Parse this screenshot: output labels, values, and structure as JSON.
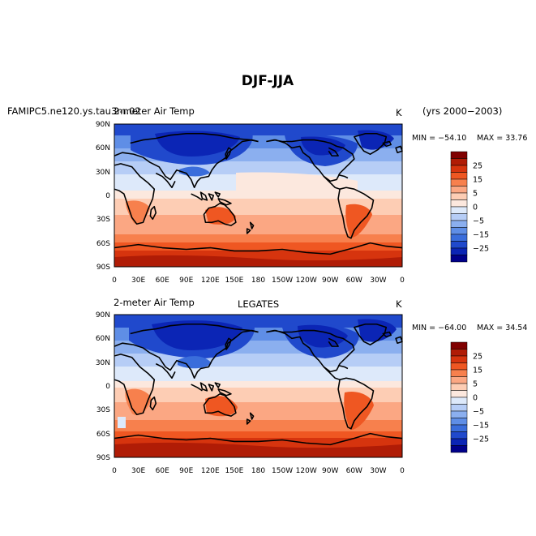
{
  "figure": {
    "title": "DJF-JJA",
    "units": "K"
  },
  "panels": [
    {
      "case_label": "FAMIPC5.ne120.ys.tau3m.02",
      "variable": "2-meter Air Temp",
      "units": "K",
      "years": "(yrs 2000−2003)",
      "min_text": "MIN = −54.10",
      "max_text": "MAX =  33.76",
      "min": -54.1,
      "max": 33.76
    },
    {
      "case_label": "LEGATES",
      "variable": "2-meter Air Temp",
      "units": "K",
      "min_text": "MIN = −64.00",
      "max_text": "MAX =  34.54",
      "min": -64.0,
      "max": 34.54
    }
  ],
  "axes": {
    "lat_ticks": [
      "90N",
      "60N",
      "30N",
      "0",
      "30S",
      "60S",
      "90S"
    ],
    "lon_ticks": [
      "0",
      "30E",
      "60E",
      "90E",
      "120E",
      "150E",
      "180",
      "150W",
      "120W",
      "90W",
      "60W",
      "30W",
      "0"
    ]
  },
  "colorbar": {
    "labels": [
      "25",
      "15",
      "5",
      "0",
      "−5",
      "−15",
      "−25"
    ],
    "colors": [
      "#800000",
      "#b01c06",
      "#d6340e",
      "#ef5722",
      "#f7804d",
      "#fba783",
      "#fdcdb4",
      "#fce8de",
      "#dde9fa",
      "#b6cdf6",
      "#8bafef",
      "#5f8ee6",
      "#3a6ddb",
      "#2049cc",
      "#0b25b5",
      "#00008a"
    ]
  },
  "map_colors": {
    "deep_blue": "#0b25b5",
    "blue": "#3a6ddb",
    "mid_blue": "#8bafef",
    "pale_blue": "#dde9fa",
    "pale_red": "#fdcdb4",
    "salmon": "#f7804d",
    "red": "#d6340e",
    "dark_red": "#b01c06"
  }
}
